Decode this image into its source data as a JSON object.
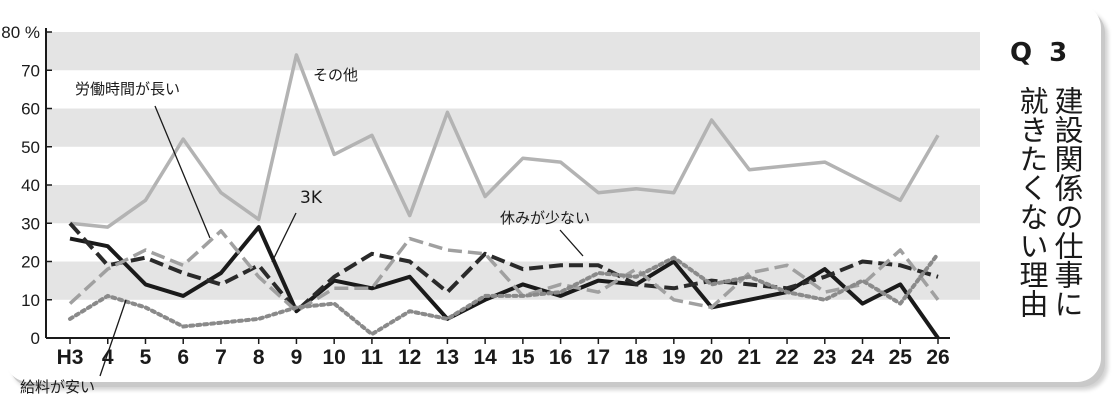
{
  "panel": {
    "question": "Q 3",
    "title_col1": "建設関係の仕事に",
    "title_col2": "就きたくない理由"
  },
  "chart_data": {
    "type": "line",
    "ylim": [
      0,
      80
    ],
    "yticks": [
      "0",
      "10",
      "20",
      "30",
      "40",
      "50",
      "60",
      "70",
      "80 %"
    ],
    "categories": [
      "H3",
      "4",
      "5",
      "6",
      "7",
      "8",
      "9",
      "10",
      "11",
      "12",
      "13",
      "14",
      "15",
      "16",
      "17",
      "18",
      "19",
      "20",
      "21",
      "22",
      "23",
      "24",
      "25",
      "26"
    ],
    "grid": "alternating gray bands",
    "series": [
      {
        "name": "その他",
        "style": "solid",
        "color": "#b3b3b3",
        "values": [
          30,
          29,
          36,
          52,
          38,
          31,
          74,
          48,
          53,
          32,
          59,
          37,
          47,
          46,
          38,
          39,
          38,
          57,
          44,
          45,
          46,
          41,
          36,
          53
        ]
      },
      {
        "name": "3K",
        "style": "solid",
        "color": "#1a1a1a",
        "values": [
          26,
          24,
          14,
          11,
          17,
          29,
          7,
          15,
          13,
          16,
          5,
          10,
          14,
          11,
          15,
          14,
          20,
          8,
          10,
          12,
          18,
          9,
          14,
          0
        ]
      },
      {
        "name": "労働時間が長い",
        "style": "dash",
        "color": "#2a2a2a",
        "values": [
          30,
          19,
          21,
          17,
          14,
          19,
          7,
          16,
          22,
          20,
          12,
          22,
          18,
          19,
          19,
          14,
          13,
          15,
          14,
          13,
          16,
          20,
          19,
          16
        ]
      },
      {
        "name": "休みが少ない",
        "style": "dash",
        "color": "#a0a0a0",
        "values": [
          9,
          18,
          23,
          19,
          28,
          16,
          7,
          13,
          13,
          26,
          23,
          22,
          11,
          14,
          12,
          18,
          10,
          8,
          17,
          19,
          12,
          14,
          23,
          10
        ]
      },
      {
        "name": "給料が安い",
        "style": "dot",
        "color": "#8a8a8a",
        "values": [
          5,
          11,
          8,
          3,
          4,
          5,
          8,
          9,
          1,
          7,
          5,
          11,
          11,
          12,
          17,
          16,
          21,
          14,
          16,
          12,
          10,
          15,
          9,
          22
        ]
      }
    ],
    "annotations": [
      "その他",
      "3K",
      "労働時間が長い",
      "休みが少ない",
      "給料が安い"
    ]
  }
}
